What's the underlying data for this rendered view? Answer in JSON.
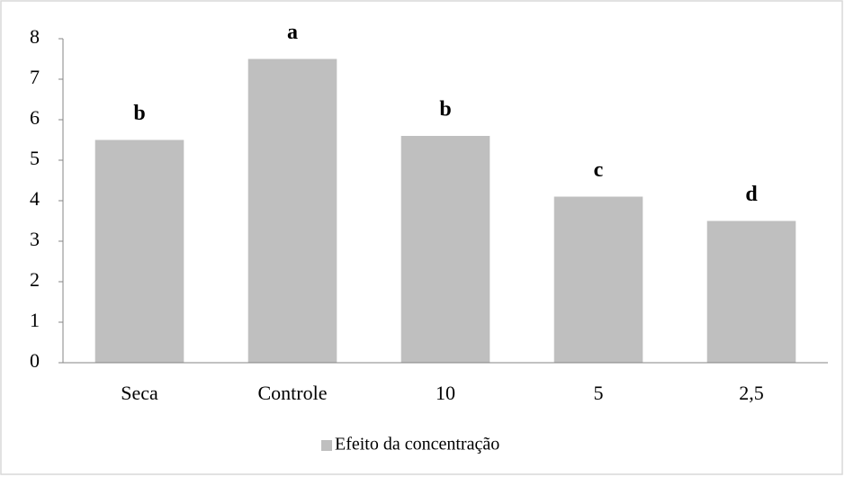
{
  "chart_data": {
    "type": "bar",
    "categories": [
      "Seca",
      "Controle",
      "10",
      "5",
      "2,5"
    ],
    "series": [
      {
        "name": "Efeito da concentração",
        "color": "#bfbfbf",
        "values": [
          5.5,
          7.5,
          5.6,
          4.1,
          3.5
        ]
      }
    ],
    "annotations": [
      "b",
      "a",
      "b",
      "c",
      "d"
    ],
    "ylim": [
      0,
      8
    ],
    "yticks": [
      0,
      1,
      2,
      3,
      4,
      5,
      6,
      7,
      8
    ],
    "grid": false,
    "legend": "bottom"
  }
}
